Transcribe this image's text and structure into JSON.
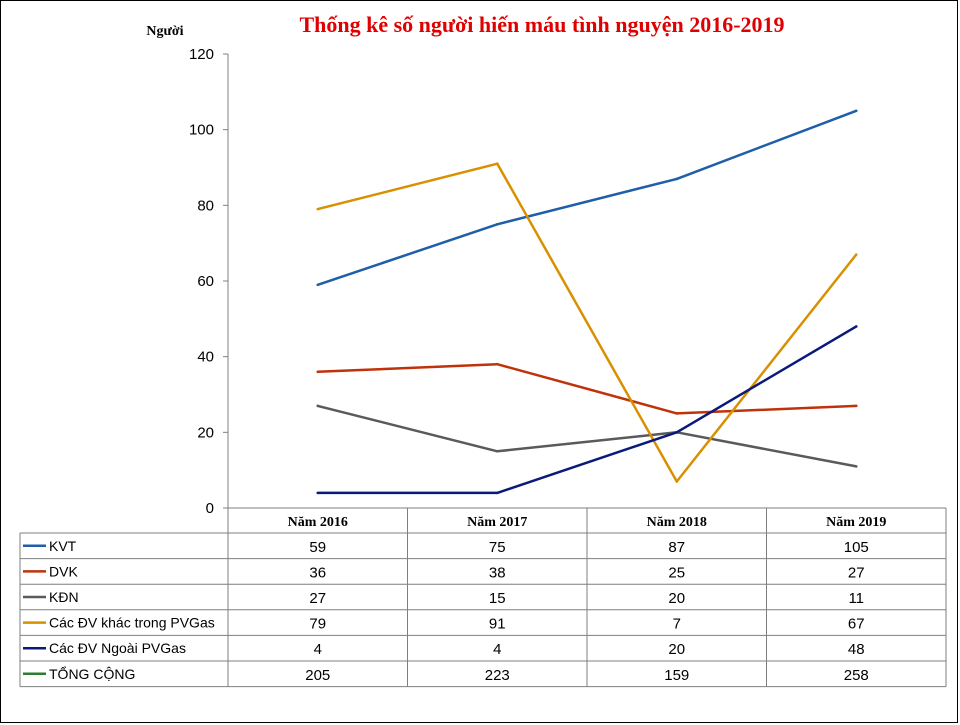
{
  "chart_data": {
    "type": "line",
    "title": "Thống kê số người hiến máu tình nguyện 2016-2019",
    "ylabel": "Người",
    "xlabel": "",
    "ylim": [
      0,
      120
    ],
    "yticks": [
      0,
      20,
      40,
      60,
      80,
      100,
      120
    ],
    "categories": [
      "Năm 2016",
      "Năm 2017",
      "Năm 2018",
      "Năm 2019"
    ],
    "grid": false,
    "legend": "data-table-below",
    "series": [
      {
        "name": "KVT",
        "color": "#1f5fa8",
        "plotted": true,
        "values": [
          59,
          75,
          87,
          105
        ]
      },
      {
        "name": "DVK",
        "color": "#c0330a",
        "plotted": true,
        "values": [
          36,
          38,
          25,
          27
        ]
      },
      {
        "name": "KĐN",
        "color": "#5a5a5a",
        "plotted": true,
        "values": [
          27,
          15,
          20,
          11
        ]
      },
      {
        "name": "Các ĐV khác trong PVGas",
        "color": "#d99000",
        "plotted": true,
        "values": [
          79,
          91,
          7,
          67
        ]
      },
      {
        "name": "Các ĐV Ngoài PVGas",
        "color": "#0a1a7a",
        "plotted": true,
        "values": [
          4,
          4,
          20,
          48
        ]
      },
      {
        "name": "TỔNG CỘNG",
        "color": "#2e7d32",
        "plotted": false,
        "values": [
          205,
          223,
          159,
          258
        ]
      }
    ]
  }
}
